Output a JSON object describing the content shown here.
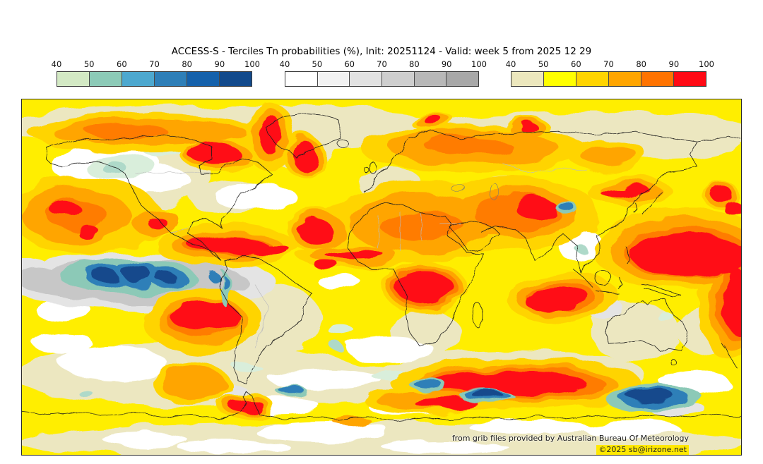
{
  "title": "ACCESS-S - Terciles Tn probabilities (%), Init: 20251124 - Valid: week 5 from 2025 12 29",
  "colorbars": [
    {
      "name": "below-normal tercile probability (cool palette)",
      "ticks": [
        "40",
        "50",
        "60",
        "70",
        "80",
        "90",
        "100"
      ],
      "colors": [
        "#d3e9c4",
        "#8ccab7",
        "#4da8cf",
        "#2e7fb8",
        "#1561ab",
        "#124a8c"
      ]
    },
    {
      "name": "near-normal tercile probability (gray palette)",
      "ticks": [
        "40",
        "50",
        "60",
        "70",
        "80",
        "90",
        "100"
      ],
      "colors": [
        "#ffffff",
        "#f2f2f2",
        "#e2e2e2",
        "#cecece",
        "#b8b8b8",
        "#a8a8a8"
      ]
    },
    {
      "name": "above-normal tercile probability (warm palette)",
      "ticks": [
        "40",
        "50",
        "60",
        "70",
        "80",
        "90",
        "100"
      ],
      "colors": [
        "#ece7bd",
        "#ffff00",
        "#ffd400",
        "#ffa500",
        "#ff7300",
        "#ff0a15"
      ]
    }
  ],
  "attribution": {
    "line1": "from grib files provided by Australian Bureau Of Meteorology",
    "line2": "©2025 sb@irizone.net"
  },
  "chart_data": {
    "type": "heatmap",
    "subtype": "global tercile-probability map, equirectangular world projection",
    "title": "ACCESS-S - Terciles Tn probabilities (%), Init: 20251124 - Valid: week 5 from 2025 12 29",
    "model": "ACCESS-S",
    "variable": "Tn tercile probabilities (%)",
    "init": "20251124",
    "valid": "week 5 from 2025 12 29",
    "grid": false,
    "legend": {
      "position": "top",
      "bin_edges_percent": [
        40,
        50,
        60,
        70,
        80,
        90,
        100
      ],
      "scales": [
        {
          "tercile": "below normal",
          "colors": [
            "#d3e9c4",
            "#8ccab7",
            "#4da8cf",
            "#2e7fb8",
            "#1561ab",
            "#124a8c"
          ]
        },
        {
          "tercile": "near normal",
          "colors": [
            "#ffffff",
            "#f2f2f2",
            "#e2e2e2",
            "#cecece",
            "#b8b8b8",
            "#a8a8a8"
          ]
        },
        {
          "tercile": "above normal",
          "colors": [
            "#ece7bd",
            "#ffff00",
            "#ffd400",
            "#ffa500",
            "#ff7300",
            "#ff0a15"
          ]
        }
      ]
    },
    "notable_regions": [
      {
        "region": "central equatorial Pacific cold tongue",
        "tercile": "below normal",
        "probability_pct": "80-100"
      },
      {
        "region": "band surrounding equatorial Pacific blobs",
        "tercile": "near normal",
        "probability_pct": "60-80"
      },
      {
        "region": "western tropical Pacific / Philippine Sea",
        "tercile": "above normal",
        "probability_pct": "90-100"
      },
      {
        "region": "southeast Pacific off Chile",
        "tercile": "above normal",
        "probability_pct": "90-100"
      },
      {
        "region": "Caribbean and northern South America",
        "tercile": "above normal",
        "probability_pct": "90-100"
      },
      {
        "region": "Hudson Bay / Labrador / SE Greenland",
        "tercile": "above normal",
        "probability_pct": "90-100"
      },
      {
        "region": "Congo basin, central Africa",
        "tercile": "above normal",
        "probability_pct": "90-100"
      },
      {
        "region": "Iran / central Asia",
        "tercile": "above normal",
        "probability_pct": "80-100"
      },
      {
        "region": "southern Indian Ocean belt near 50S",
        "tercile": "above normal",
        "probability_pct": "90-100"
      },
      {
        "region": "Sahara and Middle East",
        "tercile": "above normal",
        "probability_pct": "70-90"
      },
      {
        "region": "Alaska and western Canada",
        "tercile": "below/near normal",
        "probability_pct": "40-60"
      },
      {
        "region": "ocean south of Australia / Tasman Sea",
        "tercile": "below normal",
        "probability_pct": "80-100"
      },
      {
        "region": "Australia interior",
        "tercile": "above normal",
        "probability_pct": "40-50"
      },
      {
        "region": "Antarctica and high-latitude Southern Ocean",
        "tercile": "near normal",
        "probability_pct": "40-60"
      },
      {
        "region": "Lake Balkhash area spot",
        "tercile": "below normal",
        "probability_pct": "70-90"
      }
    ]
  }
}
